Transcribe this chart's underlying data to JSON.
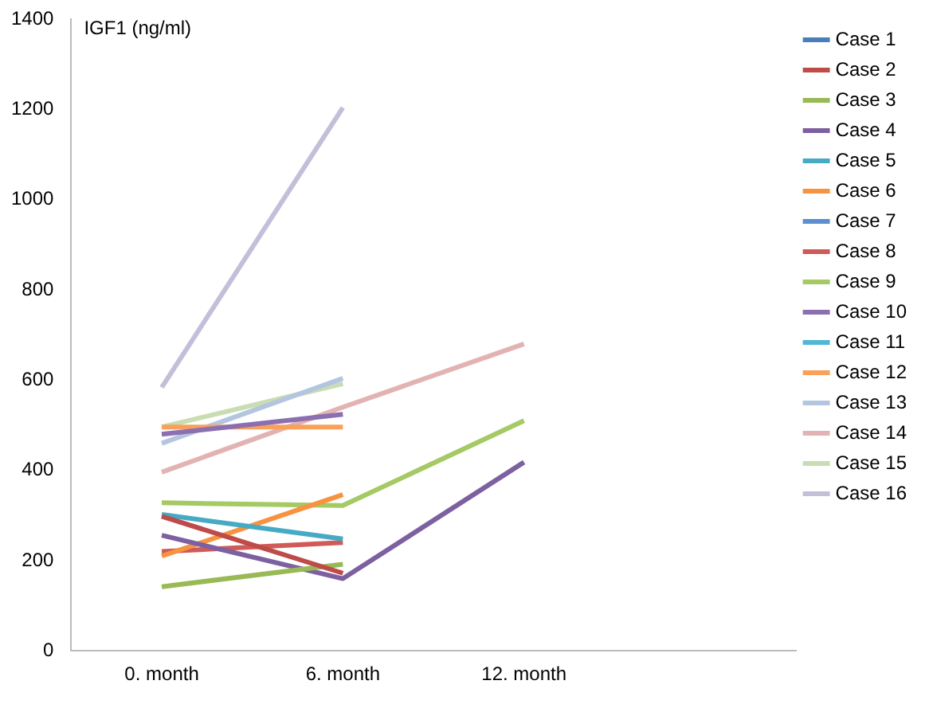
{
  "chart_data": {
    "type": "line",
    "ylabel": "IGF1 (ng/ml)",
    "categories": [
      "0. month",
      "6. month",
      "12. month",
      null
    ],
    "ylim": [
      0,
      1400
    ],
    "yticks": [
      0,
      200,
      400,
      600,
      800,
      1000,
      1200,
      1400
    ],
    "grid": false,
    "legend": "right",
    "marker": "none",
    "series": [
      {
        "name": "Case 1",
        "color": "#4a7ebb",
        "values": [
          null,
          null,
          null,
          null
        ]
      },
      {
        "name": "Case 2",
        "color": "#be4b48",
        "values": [
          298,
          172,
          null,
          null
        ]
      },
      {
        "name": "Case 3",
        "color": "#98b954",
        "values": [
          142,
          192,
          null,
          null
        ]
      },
      {
        "name": "Case 4",
        "color": "#7d60a0",
        "values": [
          256,
          160,
          418,
          null
        ]
      },
      {
        "name": "Case 5",
        "color": "#46aac5",
        "values": [
          302,
          248,
          null,
          null
        ]
      },
      {
        "name": "Case 6",
        "color": "#f69240",
        "values": [
          210,
          346,
          null,
          null
        ]
      },
      {
        "name": "Case 7",
        "color": "#5b8fd0",
        "values": [
          null,
          null,
          null,
          null
        ]
      },
      {
        "name": "Case 8",
        "color": "#d05a57",
        "values": [
          220,
          240,
          null,
          null
        ]
      },
      {
        "name": "Case 9",
        "color": "#a5c963",
        "values": [
          328,
          322,
          510,
          null
        ]
      },
      {
        "name": "Case 10",
        "color": "#8c6fb0",
        "values": [
          480,
          524,
          null,
          null
        ]
      },
      {
        "name": "Case 11",
        "color": "#50b8d4",
        "values": [
          null,
          null,
          null,
          null
        ]
      },
      {
        "name": "Case 12",
        "color": "#f9a05a",
        "values": [
          496,
          496,
          null,
          null
        ]
      },
      {
        "name": "Case 13",
        "color": "#b3c5df",
        "values": [
          460,
          604,
          null,
          null
        ]
      },
      {
        "name": "Case 14",
        "color": "#e2b3b2",
        "values": [
          396,
          540,
          680,
          null
        ]
      },
      {
        "name": "Case 15",
        "color": "#cadcb2",
        "values": [
          496,
          592,
          null,
          null
        ]
      },
      {
        "name": "Case 16",
        "color": "#c2bfd9",
        "values": [
          584,
          1204,
          null,
          null
        ]
      }
    ]
  }
}
